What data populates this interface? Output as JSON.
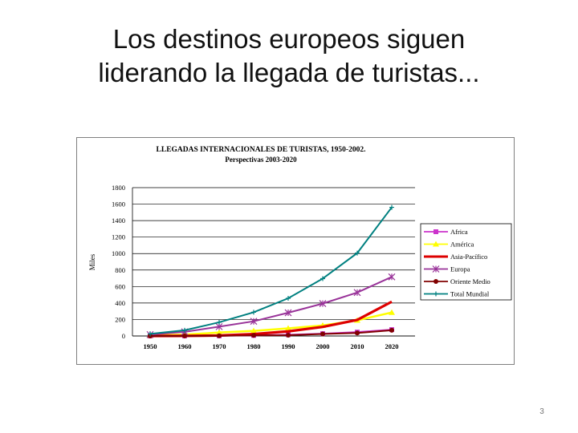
{
  "slide": {
    "title_line1": "Los destinos europeos siguen",
    "title_line2": "liderando la llegada de turistas...",
    "page_number": "3"
  },
  "chart_data": {
    "type": "line",
    "title": "LLEGADAS INTERNACIONALES DE TURISTAS, 1950-2002.",
    "subtitle": "Perspectivas 2003-2020",
    "ylabel": "Miles",
    "xlabel": "",
    "categories": [
      "1950",
      "1960",
      "1970",
      "1980",
      "1990",
      "2000",
      "2010",
      "2020"
    ],
    "y_ticks": [
      "0",
      "200",
      "400",
      "600",
      "800",
      "1000",
      "1200",
      "1400",
      "1600",
      "1800"
    ],
    "ylim": [
      0,
      1800
    ],
    "grid": "horizontal",
    "legend_position": "right",
    "series": [
      {
        "name": "Africa",
        "color": "#cc33cc",
        "marker": "square",
        "values": [
          0.5,
          0.8,
          2,
          7,
          15,
          28,
          47,
          77
        ]
      },
      {
        "name": "América",
        "color": "#ffff00",
        "marker": "triangle",
        "values": [
          7.5,
          17,
          42,
          62,
          93,
          128,
          190,
          285
        ]
      },
      {
        "name": "Asia-Pacífico",
        "color": "#dd0000",
        "marker": "none",
        "values": [
          0.2,
          1,
          6,
          23,
          56,
          110,
          195,
          416
        ]
      },
      {
        "name": "Europa",
        "color": "#993399",
        "marker": "star",
        "values": [
          17,
          50,
          113,
          178,
          282,
          393,
          527,
          717
        ]
      },
      {
        "name": "Oriente Medio",
        "color": "#800000",
        "marker": "circle",
        "values": [
          0.2,
          0.6,
          2,
          7,
          10,
          24,
          36,
          69
        ]
      },
      {
        "name": "Total Mundial",
        "color": "#008080",
        "marker": "plus",
        "values": [
          25,
          69,
          166,
          288,
          457,
          696,
          1006,
          1561
        ]
      }
    ]
  }
}
